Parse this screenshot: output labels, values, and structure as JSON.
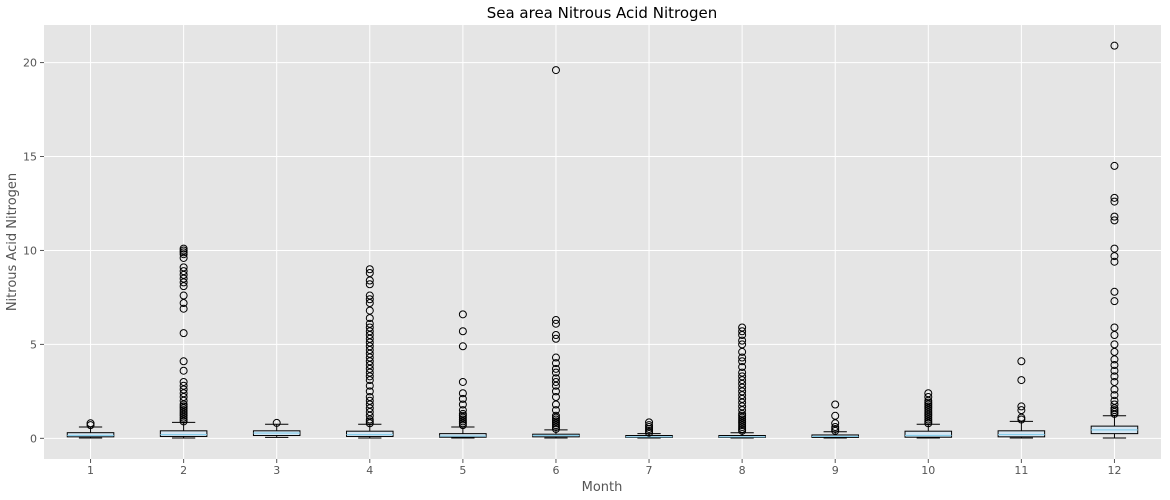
{
  "chart_data": {
    "type": "box",
    "title": "Sea area Nitrous Acid Nitrogen",
    "xlabel": "Month",
    "ylabel": "Nitrous Acid Nitrogen",
    "ylim": [
      -1.1,
      22.0
    ],
    "yticks": [
      0,
      5,
      10,
      15,
      20
    ],
    "grid": true,
    "colors": {
      "background": "#e5e5e5",
      "grid": "#ffffff",
      "box_fill": "#d6e6f2",
      "box_edge": "#000000",
      "median": "#87ceeb",
      "flier": "#000000"
    },
    "categories": [
      "1",
      "2",
      "3",
      "4",
      "5",
      "6",
      "7",
      "8",
      "9",
      "10",
      "11",
      "12"
    ],
    "boxes": [
      {
        "label": "1",
        "whislo": 0.02,
        "q1": 0.08,
        "med": 0.15,
        "q3": 0.3,
        "whishi": 0.6,
        "fliers": [
          0.7,
          0.8
        ]
      },
      {
        "label": "2",
        "whislo": 0.02,
        "q1": 0.1,
        "med": 0.2,
        "q3": 0.4,
        "whishi": 0.85,
        "fliers": [
          0.9,
          1.0,
          1.1,
          1.2,
          1.3,
          1.4,
          1.5,
          1.6,
          1.7,
          1.8,
          2.0,
          2.2,
          2.4,
          2.6,
          2.8,
          3.0,
          3.6,
          4.1,
          5.6,
          6.9,
          7.2,
          7.6,
          8.1,
          8.3,
          8.5,
          8.7,
          8.9,
          9.1,
          9.6,
          9.8,
          9.9,
          10.0,
          10.1
        ]
      },
      {
        "label": "3",
        "whislo": 0.05,
        "q1": 0.15,
        "med": 0.28,
        "q3": 0.4,
        "whishi": 0.75,
        "fliers": [
          0.82
        ]
      },
      {
        "label": "4",
        "whislo": 0.02,
        "q1": 0.1,
        "med": 0.2,
        "q3": 0.38,
        "whishi": 0.75,
        "fliers": [
          0.8,
          0.9,
          1.0,
          1.2,
          1.4,
          1.6,
          1.8,
          2.0,
          2.2,
          2.5,
          2.8,
          3.1,
          3.3,
          3.5,
          3.7,
          3.9,
          4.1,
          4.3,
          4.5,
          4.7,
          4.9,
          5.1,
          5.3,
          5.5,
          5.7,
          5.9,
          6.1,
          6.4,
          6.8,
          7.2,
          7.4,
          7.6,
          8.2,
          8.4,
          8.8,
          9.0
        ]
      },
      {
        "label": "5",
        "whislo": 0.02,
        "q1": 0.06,
        "med": 0.12,
        "q3": 0.25,
        "whishi": 0.6,
        "fliers": [
          0.7,
          0.8,
          0.9,
          1.0,
          1.1,
          1.2,
          1.3,
          1.5,
          1.8,
          2.1,
          2.4,
          3.0,
          4.9,
          5.7,
          6.6
        ]
      },
      {
        "label": "6",
        "whislo": 0.02,
        "q1": 0.08,
        "med": 0.15,
        "q3": 0.22,
        "whishi": 0.45,
        "fliers": [
          0.5,
          0.6,
          0.7,
          0.8,
          0.9,
          1.0,
          1.1,
          1.2,
          1.5,
          1.8,
          2.2,
          2.5,
          2.8,
          3.0,
          3.2,
          3.5,
          3.7,
          4.0,
          4.3,
          5.3,
          5.5,
          6.1,
          6.3,
          19.6
        ]
      },
      {
        "label": "7",
        "whislo": 0.02,
        "q1": 0.05,
        "med": 0.08,
        "q3": 0.15,
        "whishi": 0.25,
        "fliers": [
          0.3,
          0.4,
          0.5,
          0.6,
          0.7,
          0.85
        ]
      },
      {
        "label": "8",
        "whislo": 0.02,
        "q1": 0.05,
        "med": 0.08,
        "q3": 0.15,
        "whishi": 0.3,
        "fliers": [
          0.4,
          0.5,
          0.6,
          0.7,
          0.8,
          0.9,
          1.0,
          1.1,
          1.2,
          1.3,
          1.5,
          1.7,
          1.9,
          2.1,
          2.3,
          2.5,
          2.7,
          2.9,
          3.1,
          3.3,
          3.5,
          3.8,
          4.1,
          4.3,
          4.6,
          5.0,
          5.2,
          5.5,
          5.7,
          5.9
        ]
      },
      {
        "label": "9",
        "whislo": 0.02,
        "q1": 0.05,
        "med": 0.1,
        "q3": 0.18,
        "whishi": 0.35,
        "fliers": [
          0.4,
          0.5,
          0.6,
          0.8,
          1.2,
          1.8
        ]
      },
      {
        "label": "10",
        "whislo": 0.02,
        "q1": 0.06,
        "med": 0.15,
        "q3": 0.38,
        "whishi": 0.75,
        "fliers": [
          0.8,
          0.9,
          1.0,
          1.1,
          1.2,
          1.3,
          1.4,
          1.5,
          1.6,
          1.7,
          1.8,
          1.9,
          2.0,
          2.2,
          2.4
        ]
      },
      {
        "label": "11",
        "whislo": 0.02,
        "q1": 0.08,
        "med": 0.2,
        "q3": 0.4,
        "whishi": 0.9,
        "fliers": [
          1.0,
          1.1,
          1.5,
          1.7,
          3.1,
          4.1
        ]
      },
      {
        "label": "12",
        "whislo": 0.02,
        "q1": 0.25,
        "med": 0.45,
        "q3": 0.65,
        "whishi": 1.2,
        "fliers": [
          1.3,
          1.4,
          1.5,
          1.6,
          1.8,
          2.0,
          2.3,
          2.6,
          3.0,
          3.3,
          3.6,
          3.9,
          4.2,
          4.6,
          5.0,
          5.5,
          5.9,
          7.3,
          7.8,
          9.4,
          9.7,
          10.1,
          11.6,
          11.8,
          12.6,
          12.8,
          14.5,
          20.9
        ]
      }
    ]
  }
}
